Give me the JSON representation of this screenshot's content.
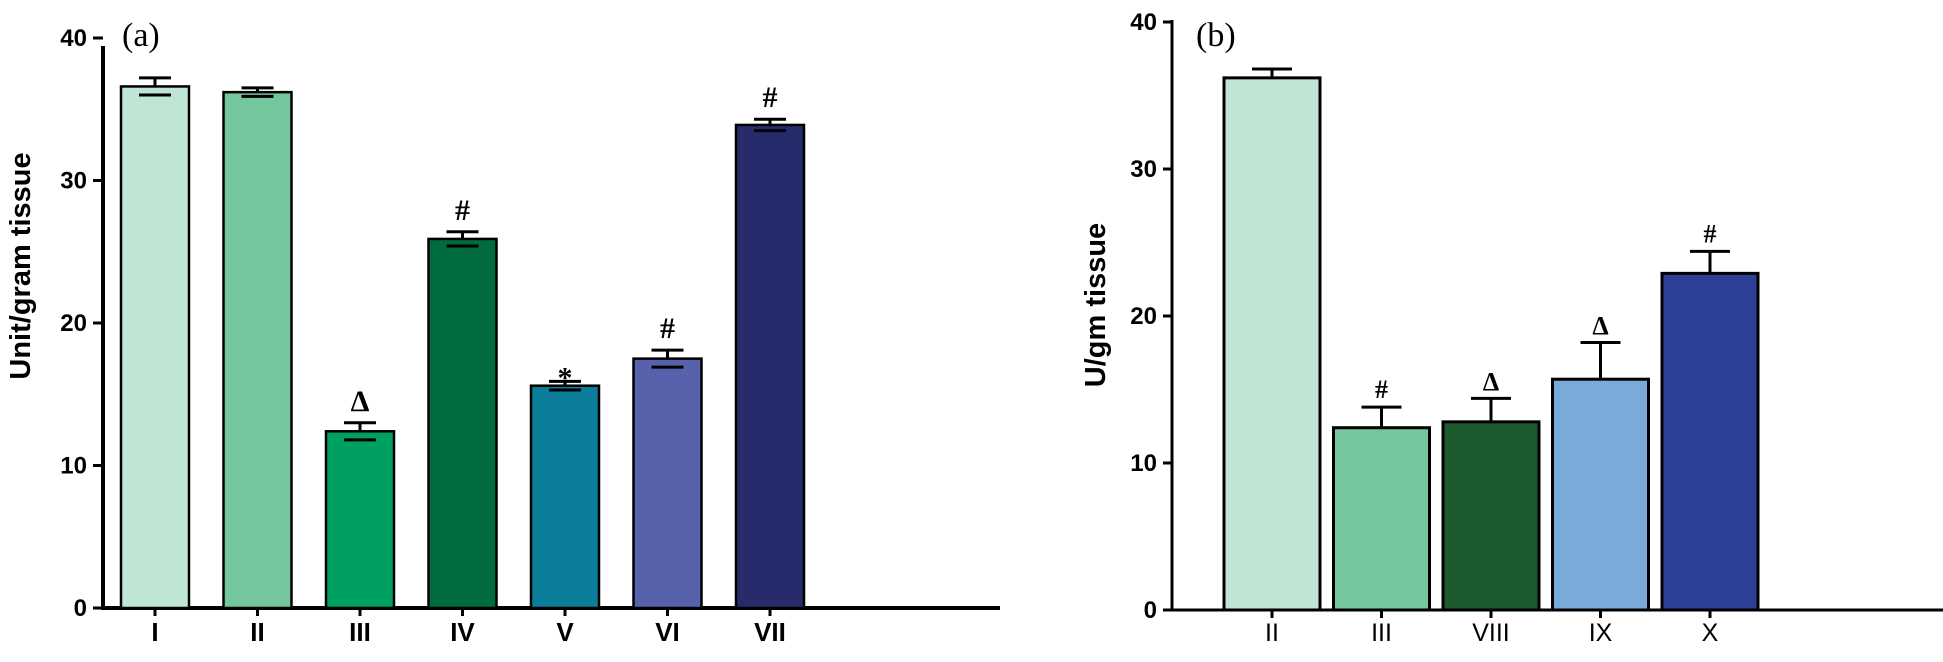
{
  "chart_data": [
    {
      "type": "bar",
      "panel_label": "(a)",
      "ylabel": "Unit/gram tissue",
      "xlabel": "",
      "ylim": [
        0,
        40
      ],
      "yticks": [
        "0",
        "10",
        "20",
        "30",
        "40"
      ],
      "categories": [
        "I",
        "II",
        "III",
        "IV",
        "V",
        "VI",
        "VII"
      ],
      "values": [
        36.6,
        36.2,
        12.4,
        25.9,
        15.6,
        17.5,
        33.9
      ],
      "errors": [
        0.6,
        0.3,
        0.6,
        0.5,
        0.3,
        0.6,
        0.4
      ],
      "annotations": [
        "",
        "",
        "Δ",
        "#",
        "*",
        "#",
        "#"
      ],
      "colors": [
        "#bfe5d4",
        "#74c69d",
        "#00a060",
        "#006b3c",
        "#0a7e98",
        "#5862ac",
        "#262b6b"
      ]
    },
    {
      "type": "bar",
      "panel_label": "(b)",
      "ylabel": "U/gm tissue",
      "xlabel": "",
      "ylim": [
        0,
        40
      ],
      "yticks": [
        "0",
        "10",
        "20",
        "30",
        "40"
      ],
      "categories": [
        "II",
        "III",
        "VIII",
        "IX",
        "X"
      ],
      "values": [
        36.2,
        12.4,
        12.8,
        15.7,
        22.9
      ],
      "errors": [
        0.6,
        1.4,
        1.6,
        2.5,
        1.5
      ],
      "annotations": [
        "",
        "#",
        "Δ",
        "Δ",
        "#"
      ],
      "colors": [
        "#bfe5d4",
        "#74c69d",
        "#1e5a2f",
        "#7aaad8",
        "#2e3f96"
      ]
    }
  ]
}
